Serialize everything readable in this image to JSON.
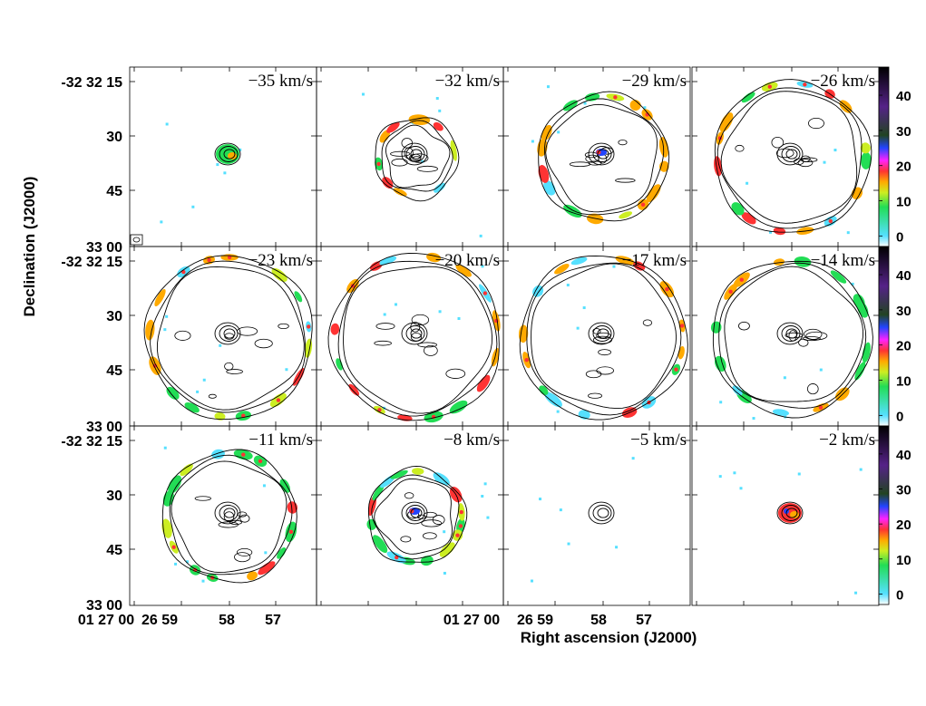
{
  "chart_data": {
    "type": "channel_map_grid",
    "xlabel": "Right ascension (J2000)",
    "ylabel": "Declination (J2000)",
    "ytick_labels": [
      "-32 32 15",
      "30",
      "45",
      "33 00"
    ],
    "xtick_labels": [
      "01 27 00",
      "26 59",
      "58",
      "57"
    ],
    "xtick_labels_short": [
      "01 27 00"
    ],
    "colorbar_ticks": [
      0,
      10,
      20,
      30,
      40
    ],
    "colorbar_range": [
      -3,
      48
    ],
    "colorbar_colors": [
      "#ffffff",
      "#55e0ff",
      "#22dd55",
      "#ccee22",
      "#ffaa00",
      "#ff3333",
      "#ff22ff",
      "#2244ff",
      "#224422",
      "#552288",
      "#000000"
    ],
    "panels": [
      {
        "velocity": -35,
        "label": "−35 km/s"
      },
      {
        "velocity": -32,
        "label": "−32 km/s"
      },
      {
        "velocity": -29,
        "label": "−29 km/s"
      },
      {
        "velocity": -26,
        "label": "−26 km/s"
      },
      {
        "velocity": -23,
        "label": "−23 km/s"
      },
      {
        "velocity": -20,
        "label": "−20 km/s"
      },
      {
        "velocity": -17,
        "label": "−17 km/s"
      },
      {
        "velocity": -14,
        "label": "−14 km/s"
      },
      {
        "velocity": -11,
        "label": "−11 km/s"
      },
      {
        "velocity": -8,
        "label": "−8 km/s"
      },
      {
        "velocity": -5,
        "label": "−5 km/s"
      },
      {
        "velocity": -2,
        "label": "−2 km/s"
      }
    ]
  }
}
